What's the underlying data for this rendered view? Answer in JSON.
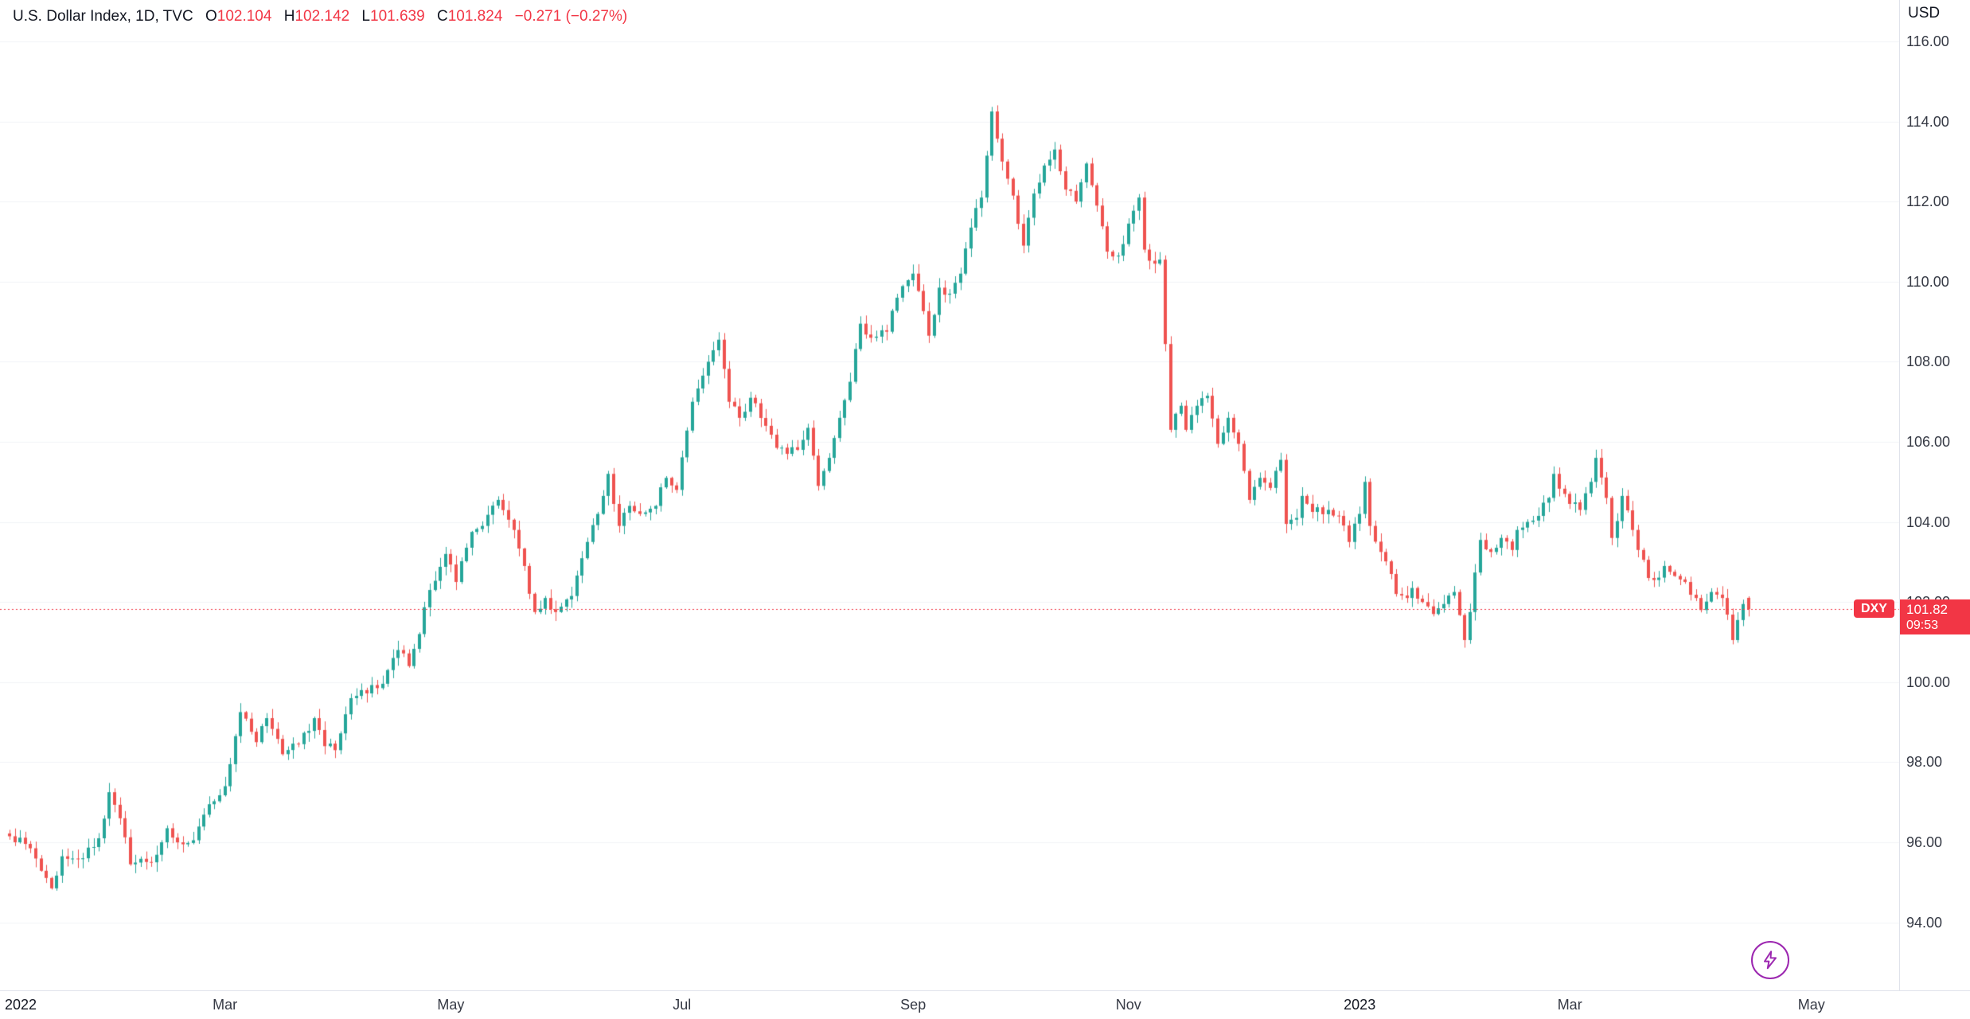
{
  "legend": {
    "symbol_title": "U.S. Dollar Index, 1D, TVC",
    "ohlc": {
      "o_label": "O",
      "o_value": "102.104",
      "h_label": "H",
      "h_value": "102.142",
      "l_label": "L",
      "l_value": "101.639",
      "c_label": "C",
      "c_value": "101.824",
      "change": "−0.271 (−0.27%)"
    }
  },
  "price_axis": {
    "currency": "USD",
    "ticks": [
      116,
      114,
      112,
      110,
      108,
      106,
      104,
      102,
      100,
      98,
      96,
      94
    ],
    "last_price_tag": {
      "price": "101.82",
      "countdown": "09:53"
    },
    "symbol_pill": "DXY"
  },
  "time_axis": {
    "labels": [
      {
        "text": "2022",
        "day": 0,
        "major": true
      },
      {
        "text": "Mar",
        "day": 41,
        "major": false
      },
      {
        "text": "May",
        "day": 84,
        "major": false
      },
      {
        "text": "Jul",
        "day": 128,
        "major": false
      },
      {
        "text": "Sep",
        "day": 172,
        "major": false
      },
      {
        "text": "Nov",
        "day": 213,
        "major": false
      },
      {
        "text": "2023",
        "day": 257,
        "major": true
      },
      {
        "text": "Mar",
        "day": 297,
        "major": false
      },
      {
        "text": "May",
        "day": 343,
        "major": false
      }
    ]
  },
  "chart_data": {
    "type": "candlestick",
    "title": "U.S. Dollar Index",
    "interval": "1D",
    "exchange": "TVC",
    "currency": "USD",
    "x_range": [
      "Jan 2022",
      "May 2023"
    ],
    "y_range_visible": [
      92.3,
      117.0
    ],
    "grid": "faint-horizontal",
    "price_line": 101.824,
    "ohlc_current": {
      "open": 102.104,
      "high": 102.142,
      "low": 101.639,
      "close": 101.824,
      "change": -0.271,
      "change_pct": -0.27
    },
    "up_color": "#26a69a",
    "down_color": "#ef5350",
    "price_line_color": "#f23645",
    "days_total": 332,
    "seed": 7,
    "noise": 0.12,
    "wick": 0.22,
    "anchors": [
      [
        0,
        96.15
      ],
      [
        4,
        95.85
      ],
      [
        8,
        94.85
      ],
      [
        10,
        95.65
      ],
      [
        14,
        95.6
      ],
      [
        17,
        96.1
      ],
      [
        19,
        97.25
      ],
      [
        21,
        96.6
      ],
      [
        23,
        95.45
      ],
      [
        27,
        95.5
      ],
      [
        30,
        96.35
      ],
      [
        33,
        95.95
      ],
      [
        35,
        96.05
      ],
      [
        38,
        96.95
      ],
      [
        41,
        97.4
      ],
      [
        43,
        98.65
      ],
      [
        44,
        99.25
      ],
      [
        47,
        98.5
      ],
      [
        49,
        99.1
      ],
      [
        52,
        98.2
      ],
      [
        55,
        98.45
      ],
      [
        58,
        99.1
      ],
      [
        60,
        98.4
      ],
      [
        62,
        98.3
      ],
      [
        65,
        99.6
      ],
      [
        67,
        99.8
      ],
      [
        70,
        99.85
      ],
      [
        72,
        100.3
      ],
      [
        74,
        100.8
      ],
      [
        76,
        100.4
      ],
      [
        78,
        101.2
      ],
      [
        80,
        102.3
      ],
      [
        83,
        103.2
      ],
      [
        85,
        102.5
      ],
      [
        88,
        103.75
      ],
      [
        90,
        103.9
      ],
      [
        93,
        104.55
      ],
      [
        96,
        103.8
      ],
      [
        98,
        102.9
      ],
      [
        100,
        101.75
      ],
      [
        102,
        102.1
      ],
      [
        104,
        101.75
      ],
      [
        107,
        102.15
      ],
      [
        110,
        103.5
      ],
      [
        112,
        104.2
      ],
      [
        114,
        105.2
      ],
      [
        116,
        103.9
      ],
      [
        118,
        104.4
      ],
      [
        120,
        104.2
      ],
      [
        123,
        104.4
      ],
      [
        125,
        105.1
      ],
      [
        127,
        104.8
      ],
      [
        130,
        107.0
      ],
      [
        133,
        108.0
      ],
      [
        135,
        108.55
      ],
      [
        137,
        107.0
      ],
      [
        139,
        106.6
      ],
      [
        141,
        107.1
      ],
      [
        144,
        106.4
      ],
      [
        146,
        105.85
      ],
      [
        148,
        105.7
      ],
      [
        150,
        105.8
      ],
      [
        152,
        106.35
      ],
      [
        154,
        104.9
      ],
      [
        156,
        105.6
      ],
      [
        158,
        106.6
      ],
      [
        160,
        107.5
      ],
      [
        162,
        108.95
      ],
      [
        164,
        108.6
      ],
      [
        167,
        108.75
      ],
      [
        169,
        109.6
      ],
      [
        172,
        110.2
      ],
      [
        175,
        108.65
      ],
      [
        177,
        109.85
      ],
      [
        179,
        109.7
      ],
      [
        181,
        110.2
      ],
      [
        183,
        111.35
      ],
      [
        185,
        112.1
      ],
      [
        187,
        114.25
      ],
      [
        189,
        113.0
      ],
      [
        191,
        112.15
      ],
      [
        193,
        110.9
      ],
      [
        195,
        112.2
      ],
      [
        197,
        112.9
      ],
      [
        199,
        113.3
      ],
      [
        201,
        112.3
      ],
      [
        203,
        112.0
      ],
      [
        205,
        112.95
      ],
      [
        207,
        111.9
      ],
      [
        209,
        110.75
      ],
      [
        211,
        110.65
      ],
      [
        213,
        111.45
      ],
      [
        215,
        112.1
      ],
      [
        216,
        110.8
      ],
      [
        218,
        110.45
      ],
      [
        219,
        110.55
      ],
      [
        221,
        106.3
      ],
      [
        223,
        106.9
      ],
      [
        224,
        106.3
      ],
      [
        226,
        106.9
      ],
      [
        228,
        107.15
      ],
      [
        230,
        105.95
      ],
      [
        232,
        106.6
      ],
      [
        234,
        105.95
      ],
      [
        236,
        104.55
      ],
      [
        238,
        105.1
      ],
      [
        240,
        104.85
      ],
      [
        242,
        105.55
      ],
      [
        243,
        103.95
      ],
      [
        245,
        104.1
      ],
      [
        246,
        104.65
      ],
      [
        248,
        104.25
      ],
      [
        251,
        104.3
      ],
      [
        253,
        104.15
      ],
      [
        255,
        103.5
      ],
      [
        257,
        104.2
      ],
      [
        258,
        105.0
      ],
      [
        259,
        103.9
      ],
      [
        261,
        103.25
      ],
      [
        263,
        102.7
      ],
      [
        264,
        102.2
      ],
      [
        266,
        102.1
      ],
      [
        267,
        102.35
      ],
      [
        269,
        102.0
      ],
      [
        271,
        101.7
      ],
      [
        273,
        101.95
      ],
      [
        275,
        102.25
      ],
      [
        277,
        101.05
      ],
      [
        278,
        101.75
      ],
      [
        280,
        103.55
      ],
      [
        282,
        103.25
      ],
      [
        284,
        103.6
      ],
      [
        286,
        103.3
      ],
      [
        287,
        103.8
      ],
      [
        289,
        104.0
      ],
      [
        291,
        104.15
      ],
      [
        293,
        104.6
      ],
      [
        294,
        105.2
      ],
      [
        296,
        104.7
      ],
      [
        297,
        104.45
      ],
      [
        299,
        104.3
      ],
      [
        301,
        105.0
      ],
      [
        302,
        105.6
      ],
      [
        304,
        104.6
      ],
      [
        305,
        103.6
      ],
      [
        307,
        104.65
      ],
      [
        309,
        103.8
      ],
      [
        310,
        103.3
      ],
      [
        312,
        102.6
      ],
      [
        313,
        102.55
      ],
      [
        315,
        102.9
      ],
      [
        317,
        102.65
      ],
      [
        319,
        102.5
      ],
      [
        321,
        102.1
      ],
      [
        322,
        101.8
      ],
      [
        324,
        102.25
      ],
      [
        326,
        102.1
      ],
      [
        328,
        101.05
      ],
      [
        329,
        101.55
      ],
      [
        330,
        101.95
      ],
      [
        331,
        101.824
      ]
    ]
  }
}
